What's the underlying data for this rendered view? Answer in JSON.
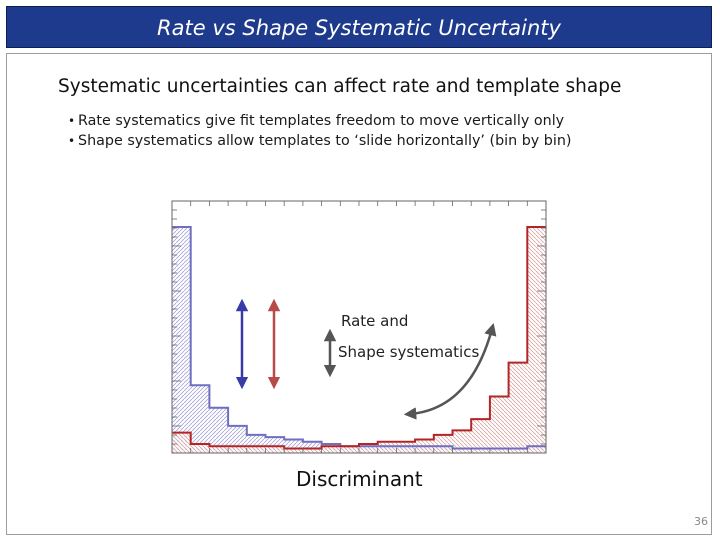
{
  "title": "Rate vs Shape Systematic Uncertainty",
  "heading": "Systematic uncertainties can affect rate and template shape",
  "bullets": [
    "Rate systematics give fit templates freedom to move vertically only",
    "Shape systematics allow templates to ‘slide horizontally’ (bin by bin)"
  ],
  "chart_data": {
    "type": "histogram",
    "xlabel": "Discriminant",
    "ylabel": "",
    "bins": 20,
    "series": [
      {
        "color": "#6f6fbf",
        "values": [
          100,
          30,
          20,
          12,
          8,
          7,
          6,
          5,
          4,
          3,
          3,
          3,
          3,
          3,
          3,
          2,
          2,
          2,
          2,
          3
        ]
      },
      {
        "color": "#b32424",
        "values": [
          9,
          4,
          3,
          3,
          3,
          3,
          2,
          2,
          3,
          3,
          4,
          5,
          5,
          6,
          8,
          10,
          15,
          25,
          40,
          100
        ]
      }
    ],
    "annotations": {
      "rate_and": "Rate and",
      "shape_systematics": "Shape systematics"
    },
    "colors": {
      "blue_arrow": "#3a3aa8",
      "red_arrow": "#b84a4a",
      "grey_arrow": "#555555"
    }
  },
  "page_number": "36"
}
